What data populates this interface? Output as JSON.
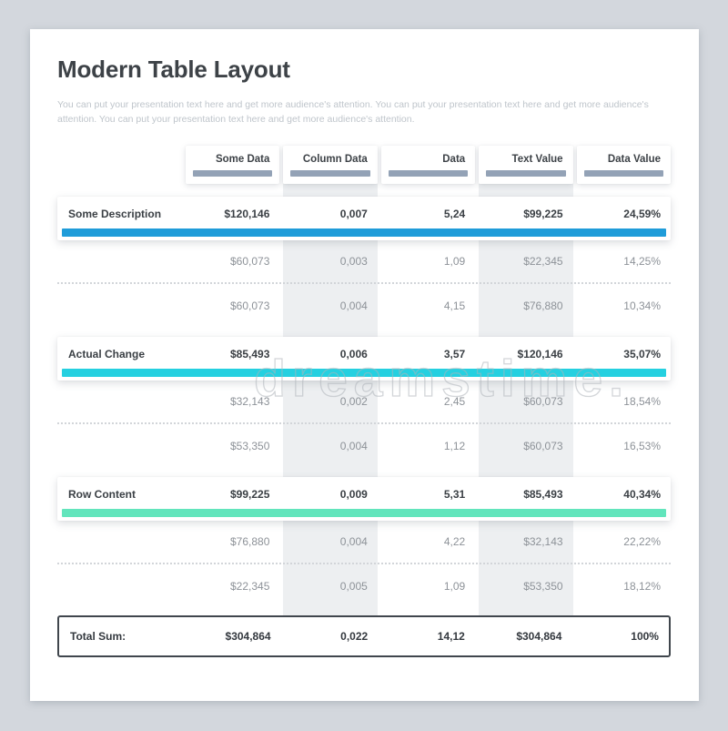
{
  "page": {
    "title": "Modern Table Layout",
    "description": "You can put your presentation text here and get more audience's attention. You can put your presentation text here and get more audience's attention. You can put your presentation text here and get more audience's attention."
  },
  "watermark": {
    "text": "dreamstime",
    "suffix": "."
  },
  "colors": {
    "page_background": "#d3d7dd",
    "card_background": "#ffffff",
    "header_bar": "#93a2b6",
    "column_stripe": "#edeff1",
    "accent_blue": "#1f9cd9",
    "accent_cyan": "#25d0e0",
    "accent_mint": "#62e5bc",
    "total_border": "#40464d",
    "title_text": "#3d4247",
    "muted_text": "#8d9298"
  },
  "chart_data": {
    "type": "table",
    "title": "Modern Table Layout",
    "columns": [
      "Some Data",
      "Column Data",
      "Data",
      "Text Value",
      "Data Value"
    ],
    "striped_columns": [
      "Column Data",
      "Text Value"
    ],
    "rows": [
      {
        "type": "highlight",
        "label": "Some Description",
        "values": [
          "$120,146",
          "0,007",
          "5,24",
          "$99,225",
          "24,59%"
        ],
        "accent": "#1f9cd9"
      },
      {
        "type": "normal",
        "label": "",
        "values": [
          "$60,073",
          "0,003",
          "1,09",
          "$22,345",
          "14,25%"
        ]
      },
      {
        "type": "normal",
        "label": "",
        "values": [
          "$60,073",
          "0,004",
          "4,15",
          "$76,880",
          "10,34%"
        ]
      },
      {
        "type": "highlight",
        "label": "Actual Change",
        "values": [
          "$85,493",
          "0,006",
          "3,57",
          "$120,146",
          "35,07%"
        ],
        "accent": "#25d0e0"
      },
      {
        "type": "normal",
        "label": "",
        "values": [
          "$32,143",
          "0,002",
          "2,45",
          "$60,073",
          "18,54%"
        ]
      },
      {
        "type": "normal",
        "label": "",
        "values": [
          "$53,350",
          "0,004",
          "1,12",
          "$60,073",
          "16,53%"
        ]
      },
      {
        "type": "highlight",
        "label": "Row Content",
        "values": [
          "$99,225",
          "0,009",
          "5,31",
          "$85,493",
          "40,34%"
        ],
        "accent": "#62e5bc"
      },
      {
        "type": "normal",
        "label": "",
        "values": [
          "$76,880",
          "0,004",
          "4,22",
          "$32,143",
          "22,22%"
        ]
      },
      {
        "type": "normal",
        "label": "",
        "values": [
          "$22,345",
          "0,005",
          "1,09",
          "$53,350",
          "18,12%"
        ]
      },
      {
        "type": "total",
        "label": "Total Sum:",
        "values": [
          "$304,864",
          "0,022",
          "14,12",
          "$304,864",
          "100%"
        ]
      }
    ]
  }
}
